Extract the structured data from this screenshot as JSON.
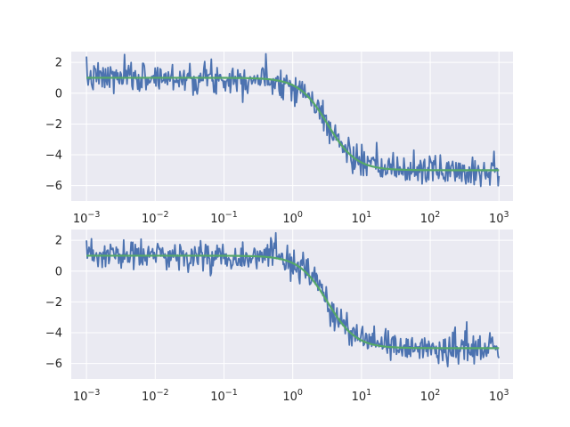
{
  "chart_data": [
    {
      "type": "line",
      "xscale": "log",
      "xlim": [
        0.0006,
        1600
      ],
      "ylim": [
        -7,
        2.7
      ],
      "xticks": [
        {
          "value": 0.001,
          "base": "10",
          "exp": "−3"
        },
        {
          "value": 0.01,
          "base": "10",
          "exp": "−2"
        },
        {
          "value": 0.1,
          "base": "10",
          "exp": "−1"
        },
        {
          "value": 1,
          "base": "10",
          "exp": "0"
        },
        {
          "value": 10,
          "base": "10",
          "exp": "1"
        },
        {
          "value": 100,
          "base": "10",
          "exp": "2"
        },
        {
          "value": 1000,
          "base": "10",
          "exp": "3"
        }
      ],
      "yticks": [
        {
          "value": 2,
          "label": "2"
        },
        {
          "value": 0,
          "label": "0"
        },
        {
          "value": -2,
          "label": "−2"
        },
        {
          "value": -4,
          "label": "−4"
        },
        {
          "value": -6,
          "label": "−6"
        }
      ],
      "grid": true,
      "series": [
        {
          "role": "noisy",
          "color": "#4c72b0",
          "x_range": [
            0.001,
            1000
          ],
          "n_points": 500,
          "noise_std": 0.5,
          "seed": 7,
          "curve": {
            "low_level": 1.0,
            "high_level": -5.0,
            "center_x": 3.2,
            "steepness": 2.1
          }
        },
        {
          "role": "smooth",
          "color": "#55a868",
          "x_range": [
            0.001,
            1000
          ],
          "n_points": 500,
          "curve": {
            "low_level": 1.0,
            "high_level": -5.0,
            "center_x": 3.2,
            "steepness": 2.1
          }
        }
      ]
    },
    {
      "type": "line",
      "xscale": "log",
      "xlim": [
        0.0006,
        1600
      ],
      "ylim": [
        -7,
        2.7
      ],
      "xticks": [
        {
          "value": 0.001,
          "base": "10",
          "exp": "−3"
        },
        {
          "value": 0.01,
          "base": "10",
          "exp": "−2"
        },
        {
          "value": 0.1,
          "base": "10",
          "exp": "−1"
        },
        {
          "value": 1,
          "base": "10",
          "exp": "0"
        },
        {
          "value": 10,
          "base": "10",
          "exp": "1"
        },
        {
          "value": 100,
          "base": "10",
          "exp": "2"
        },
        {
          "value": 1000,
          "base": "10",
          "exp": "3"
        }
      ],
      "yticks": [
        {
          "value": 2,
          "label": "2"
        },
        {
          "value": 0,
          "label": "0"
        },
        {
          "value": -2,
          "label": "−2"
        },
        {
          "value": -4,
          "label": "−4"
        },
        {
          "value": -6,
          "label": "−6"
        }
      ],
      "grid": true,
      "series": [
        {
          "role": "noisy",
          "color": "#4c72b0",
          "x_range": [
            0.001,
            1000
          ],
          "n_points": 500,
          "noise_std": 0.5,
          "seed": 23,
          "curve": {
            "low_level": 1.0,
            "high_level": -5.0,
            "center_x": 3.2,
            "steepness": 2.1
          }
        },
        {
          "role": "smooth",
          "color": "#55a868",
          "x_range": [
            0.001,
            1000
          ],
          "n_points": 500,
          "curve": {
            "low_level": 1.0,
            "high_level": -5.0,
            "center_x": 3.2,
            "steepness": 2.1
          }
        }
      ]
    }
  ],
  "style": {
    "axes_background": "#eaeaf2",
    "grid_color": "#ffffff",
    "text_color": "#262626"
  }
}
